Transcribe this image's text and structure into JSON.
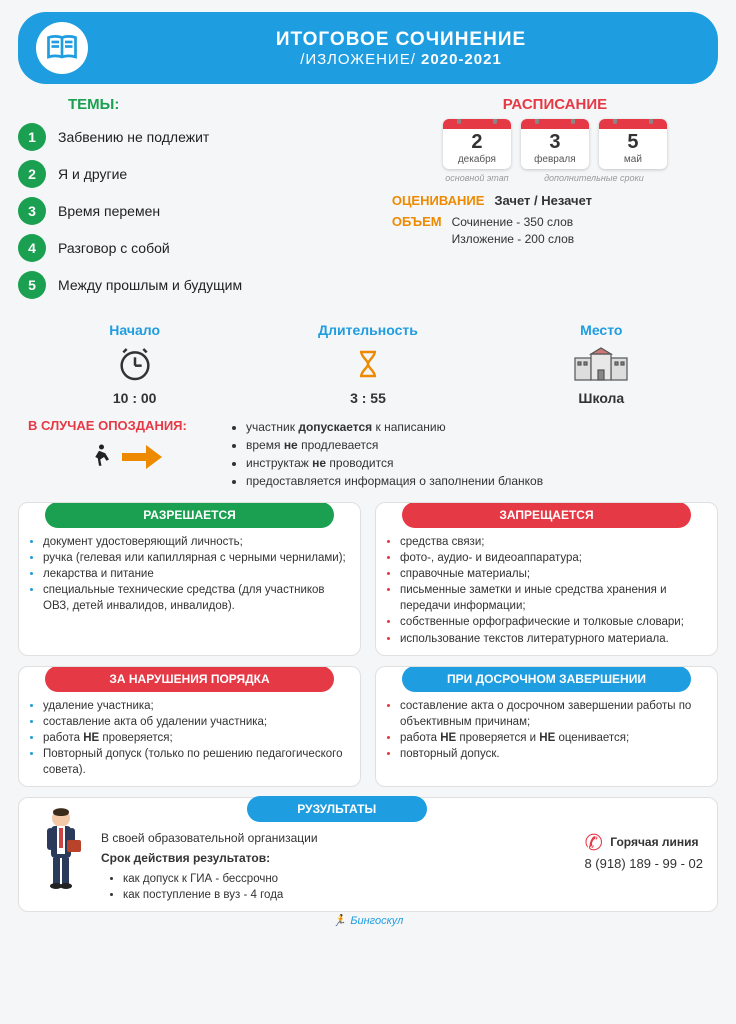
{
  "header": {
    "title": "ИТОГОВОЕ СОЧИНЕНИЕ",
    "subtitle_prefix": "/ИЗЛОЖЕНИЕ/",
    "year": "2020-2021"
  },
  "themes": {
    "title": "ТЕМЫ:",
    "items": [
      "Забвению не подлежит",
      "Я и другие",
      "Время перемен",
      "Разговор с собой",
      "Между прошлым и будущим"
    ]
  },
  "schedule": {
    "title": "РАСПИСАНИЕ",
    "dates": [
      {
        "day": "2",
        "month": "декабря"
      },
      {
        "day": "3",
        "month": "февраля"
      },
      {
        "day": "5",
        "month": "май"
      }
    ],
    "label_main": "основной этап",
    "label_extra": "дополнительные сроки"
  },
  "evaluation": {
    "label": "ОЦЕНИВАНИЕ",
    "value": "Зачет / Незачет"
  },
  "volume": {
    "label": "ОБЪЕМ",
    "line1": "Сочинение - 350 слов",
    "line2": "Изложение - 200 слов"
  },
  "info": {
    "start": {
      "title": "Начало",
      "value": "10 : 00"
    },
    "duration": {
      "title": "Длительность",
      "value": "3 : 55"
    },
    "place": {
      "title": "Место",
      "value": "Школа"
    }
  },
  "late": {
    "title": "В СЛУЧАЕ ОПОЗДАНИЯ:",
    "rules": [
      "участник <b>допускается</b> к написанию",
      "время <b>не</b> продлевается",
      "инструктаж <b>не</b> проводится",
      "предоставляется информация о заполнении бланков"
    ]
  },
  "allowed": {
    "title": "РАЗРЕШАЕТСЯ",
    "items": [
      "документ удостоверяющий личность;",
      "ручка (гелевая или капиллярная с черными чернилами);",
      "лекарства и питание",
      "специальные технические средства (для участников ОВЗ, детей инвалидов, инвалидов)."
    ]
  },
  "forbidden": {
    "title": "ЗАПРЕЩАЕТСЯ",
    "items": [
      "средства связи;",
      "фото-, аудио- и видеоаппаратура;",
      "справочные материалы;",
      "письменные заметки и иные средства хранения и передачи информации;",
      "собственные орфографические и толковые словари;",
      "использование текстов литературного материала."
    ]
  },
  "violation": {
    "title": "ЗА НАРУШЕНИЯ ПОРЯДКА",
    "items": [
      "удаление участника;",
      "составление акта об удалении участника;",
      "работа <b>НЕ</b> проверяется;",
      "Повторный допуск (только по решению педагогического совета)."
    ]
  },
  "early": {
    "title": "ПРИ ДОСРОЧНОМ ЗАВЕРШЕНИИ",
    "items": [
      "составление акта о досрочном завершении работы по объективным причинам;",
      "работа <b>НЕ</b> проверяется и <b>НЕ</b> оценивается;",
      "повторный допуск."
    ]
  },
  "results": {
    "title": "РУЗУЛЬТАТЫ",
    "where": "В своей образовательной организации",
    "validity_title": "Срок действия результатов:",
    "validity_items": [
      "как допуск к ГИА - бессрочно",
      "как поступление в вуз - 4 года"
    ],
    "hotline_label": "Горячая линия",
    "phone": "8 (918) 189 - 99 - 02"
  },
  "footer": "Бингоскул",
  "colors": {
    "blue": "#1e9de0",
    "green": "#1aa050",
    "red": "#e63946",
    "orange": "#ed8a00"
  }
}
